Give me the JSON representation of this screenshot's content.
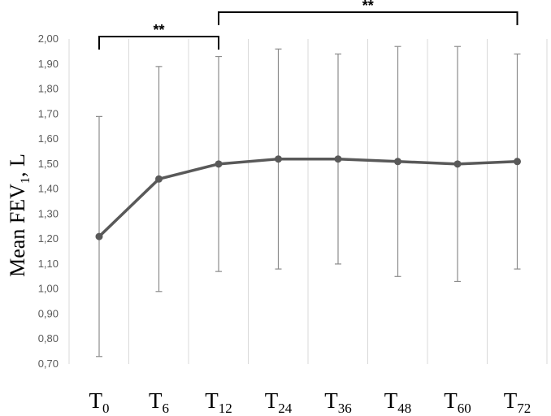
{
  "chart_data": {
    "type": "line",
    "title": "",
    "xlabel": "",
    "ylabel": {
      "main": "Mean FEV",
      "sub": "1",
      "rest": ", L"
    },
    "ylim": [
      0.7,
      2.0
    ],
    "y_ticks": [
      "0,70",
      "0,80",
      "0,90",
      "1,00",
      "1,10",
      "1,20",
      "1,30",
      "1,40",
      "1,50",
      "1,60",
      "1,70",
      "1,80",
      "1,90",
      "2,00"
    ],
    "y_tick_values": [
      0.7,
      0.8,
      0.9,
      1.0,
      1.1,
      1.2,
      1.3,
      1.4,
      1.5,
      1.6,
      1.7,
      1.8,
      1.9,
      2.0
    ],
    "categories": [
      {
        "main": "T",
        "sub": "0"
      },
      {
        "main": "T",
        "sub": "6"
      },
      {
        "main": "T",
        "sub": "12"
      },
      {
        "main": "T",
        "sub": "24"
      },
      {
        "main": "T",
        "sub": "36"
      },
      {
        "main": "T",
        "sub": "48"
      },
      {
        "main": "T",
        "sub": "60"
      },
      {
        "main": "T",
        "sub": "72"
      }
    ],
    "series": [
      {
        "values": [
          1.21,
          1.44,
          1.5,
          1.52,
          1.52,
          1.51,
          1.5,
          1.51
        ],
        "error_low": [
          0.73,
          0.99,
          1.07,
          1.08,
          1.1,
          1.05,
          1.03,
          1.08
        ],
        "error_high": [
          1.69,
          1.89,
          1.93,
          1.96,
          1.94,
          1.97,
          1.97,
          1.94
        ],
        "color": "#595959"
      }
    ],
    "grid": {
      "vertical": true,
      "horizontal": false,
      "color": "#d9d9d9"
    },
    "significance": [
      {
        "from": 0,
        "to": 2,
        "label": "**"
      },
      {
        "from": 2,
        "to": 7,
        "label": "**"
      }
    ]
  }
}
